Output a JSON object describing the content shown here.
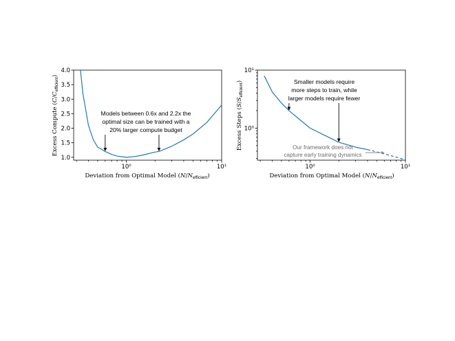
{
  "chart_data": [
    {
      "type": "line",
      "xscale": "log",
      "yscale": "linear",
      "xlim": [
        0.28,
        10
      ],
      "ylim": [
        0.9,
        4.0
      ],
      "xticks": [
        {
          "value": 1,
          "label": "10⁰"
        },
        {
          "value": 10,
          "label": "10¹"
        }
      ],
      "yticks": [
        {
          "value": 1.0,
          "label": "1.0"
        },
        {
          "value": 1.5,
          "label": "1.5"
        },
        {
          "value": 2.0,
          "label": "2.0"
        },
        {
          "value": 2.5,
          "label": "2.5"
        },
        {
          "value": 3.0,
          "label": "3.0"
        },
        {
          "value": 3.5,
          "label": "3.5"
        },
        {
          "value": 4.0,
          "label": "4.0"
        }
      ],
      "xlabel": "Deviation from Optimal Model (N/N_efficient)",
      "ylabel": "Excess Compute (C/C_efficient)",
      "series": [
        {
          "color": "#1f77b4",
          "x": [
            0.33,
            0.35,
            0.4,
            0.45,
            0.5,
            0.6,
            0.7,
            0.8,
            1.0,
            1.2,
            1.5,
            2.0,
            2.2,
            3.0,
            4.0,
            5.0,
            7.0,
            10.0
          ],
          "y": [
            4.0,
            3.2,
            2.1,
            1.6,
            1.35,
            1.2,
            1.1,
            1.04,
            1.0,
            1.02,
            1.08,
            1.18,
            1.2,
            1.38,
            1.6,
            1.8,
            2.2,
            2.8
          ]
        }
      ],
      "annotations": [
        {
          "lines": [
            "Models between 0.6x and 2.2x the",
            "optimal size can be trained with a",
            "20% larger compute budget"
          ]
        }
      ],
      "arrows": [
        {
          "x": 0.6,
          "y": 1.2
        },
        {
          "x": 2.2,
          "y": 1.2
        }
      ]
    },
    {
      "type": "line",
      "xscale": "log",
      "yscale": "log",
      "xlim": [
        0.28,
        10
      ],
      "ylim": [
        0.28,
        10
      ],
      "xticks": [
        {
          "value": 1,
          "label": "10⁰"
        },
        {
          "value": 10,
          "label": "10¹"
        }
      ],
      "yticks": [
        {
          "value": 1,
          "label": "10⁰"
        },
        {
          "value": 10,
          "label": "10¹"
        }
      ],
      "xlabel": "Deviation from Optimal Model (N/N_efficient)",
      "ylabel": "Excess Steps (S/S_efficient)",
      "series": [
        {
          "color": "#1f77b4",
          "style": "solid",
          "x": [
            0.33,
            0.4,
            0.5,
            0.6,
            0.8,
            1.0,
            1.5,
            2.0,
            3.0,
            4.0
          ],
          "y": [
            8.0,
            4.2,
            2.7,
            2.0,
            1.35,
            1.0,
            0.72,
            0.57,
            0.47,
            0.425
          ]
        },
        {
          "color": "#1f77b4",
          "style": "dashed",
          "x": [
            4.0,
            5.0,
            7.0,
            10.0
          ],
          "y": [
            0.425,
            0.39,
            0.335,
            0.285
          ]
        }
      ],
      "annotations": [
        {
          "lines": [
            "Smaller models require",
            "more steps to train, while",
            "larger models require fewer"
          ]
        },
        {
          "lines": [
            "Our framework does not",
            "capture early training dynamics"
          ],
          "color": "#6b6b6b"
        }
      ],
      "arrows": [
        {
          "x": 0.6,
          "y": 2.0
        },
        {
          "x": 2.0,
          "y": 0.57
        }
      ]
    }
  ]
}
